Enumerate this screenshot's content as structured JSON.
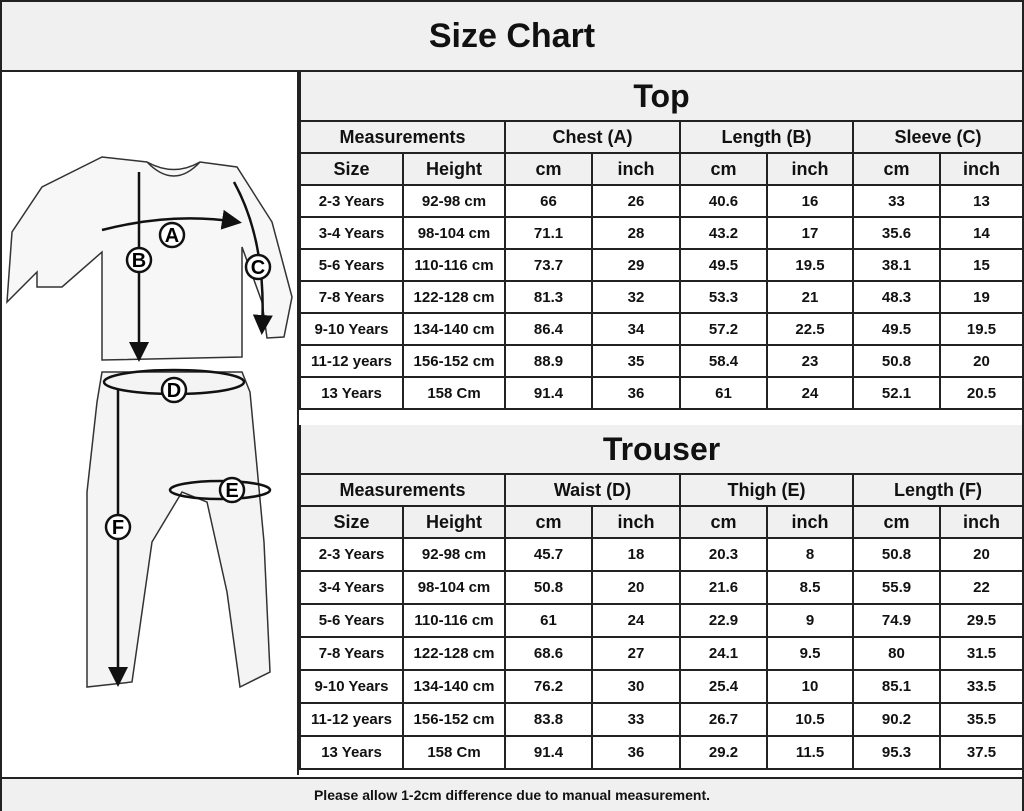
{
  "title": "Size Chart",
  "illustration": {
    "labels": [
      "A",
      "B",
      "C",
      "D",
      "E",
      "F"
    ]
  },
  "top": {
    "title": "Top",
    "group_headers": [
      "Measurements",
      "Chest (A)",
      "Length (B)",
      "Sleeve (C)"
    ],
    "sub_headers": [
      "Size",
      "Height",
      "cm",
      "inch",
      "cm",
      "inch",
      "cm",
      "inch"
    ],
    "rows": [
      [
        "2-3 Years",
        "92-98 cm",
        "66",
        "26",
        "40.6",
        "16",
        "33",
        "13"
      ],
      [
        "3-4 Years",
        "98-104 cm",
        "71.1",
        "28",
        "43.2",
        "17",
        "35.6",
        "14"
      ],
      [
        "5-6 Years",
        "110-116 cm",
        "73.7",
        "29",
        "49.5",
        "19.5",
        "38.1",
        "15"
      ],
      [
        "7-8 Years",
        "122-128 cm",
        "81.3",
        "32",
        "53.3",
        "21",
        "48.3",
        "19"
      ],
      [
        "9-10 Years",
        "134-140 cm",
        "86.4",
        "34",
        "57.2",
        "22.5",
        "49.5",
        "19.5"
      ],
      [
        "11-12 years",
        "156-152 cm",
        "88.9",
        "35",
        "58.4",
        "23",
        "50.8",
        "20"
      ],
      [
        "13 Years",
        "158 Cm",
        "91.4",
        "36",
        "61",
        "24",
        "52.1",
        "20.5"
      ]
    ]
  },
  "trouser": {
    "title": "Trouser",
    "group_headers": [
      "Measurements",
      "Waist (D)",
      "Thigh (E)",
      "Length (F)"
    ],
    "sub_headers": [
      "Size",
      "Height",
      "cm",
      "inch",
      "cm",
      "inch",
      "cm",
      "inch"
    ],
    "rows": [
      [
        "2-3 Years",
        "92-98 cm",
        "45.7",
        "18",
        "20.3",
        "8",
        "50.8",
        "20"
      ],
      [
        "3-4 Years",
        "98-104 cm",
        "50.8",
        "20",
        "21.6",
        "8.5",
        "55.9",
        "22"
      ],
      [
        "5-6 Years",
        "110-116 cm",
        "61",
        "24",
        "22.9",
        "9",
        "74.9",
        "29.5"
      ],
      [
        "7-8 Years",
        "122-128 cm",
        "68.6",
        "27",
        "24.1",
        "9.5",
        "80",
        "31.5"
      ],
      [
        "9-10 Years",
        "134-140 cm",
        "76.2",
        "30",
        "25.4",
        "10",
        "85.1",
        "33.5"
      ],
      [
        "11-12 years",
        "156-152 cm",
        "83.8",
        "33",
        "26.7",
        "10.5",
        "90.2",
        "35.5"
      ],
      [
        "13 Years",
        "158 Cm",
        "91.4",
        "36",
        "29.2",
        "11.5",
        "95.3",
        "37.5"
      ]
    ]
  },
  "footer": "Please allow 1-2cm difference due to manual measurement."
}
